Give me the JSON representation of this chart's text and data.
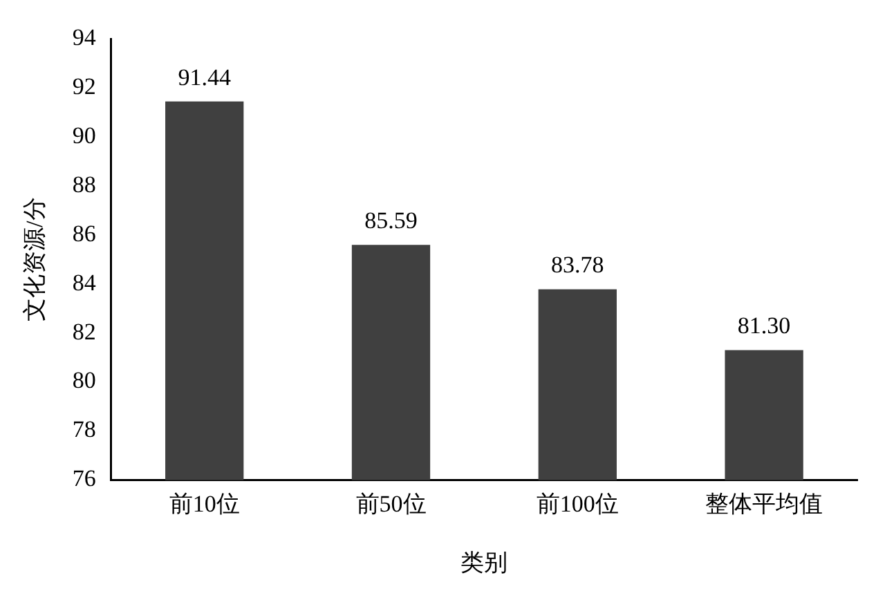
{
  "chart_data": {
    "type": "bar",
    "xlabel": "类别",
    "ylabel": "文化资源/分",
    "categories": [
      "前10位",
      "前50位",
      "前100位",
      "整体平均值"
    ],
    "values": [
      91.44,
      85.59,
      83.78,
      81.3
    ],
    "value_labels": [
      "91.44",
      "85.59",
      "83.78",
      "81.30"
    ],
    "color": "#404040",
    "ylim": [
      76,
      94
    ],
    "yticks": [
      76,
      78,
      80,
      82,
      84,
      86,
      88,
      90,
      92,
      94
    ],
    "grid": false,
    "legend": false
  }
}
